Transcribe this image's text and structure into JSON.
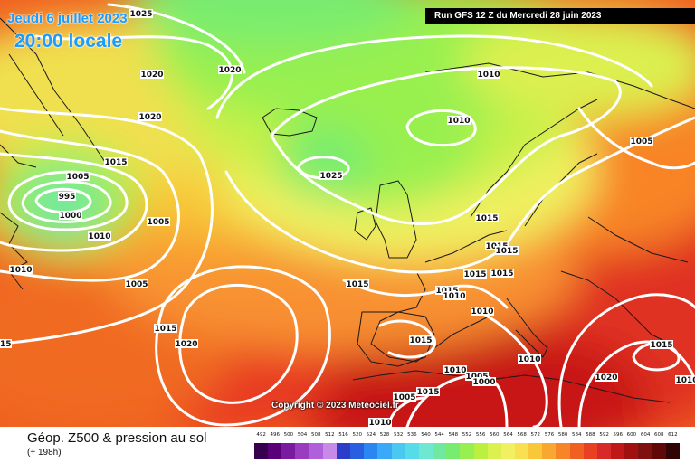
{
  "header": {
    "date": "Jeudi 6 juillet 2023",
    "time": "20:00 locale",
    "run": "Run GFS 12 Z du Mercredi 28 juin 2023"
  },
  "copyright": "Copyright © 2023 Meteociel.fr",
  "footer": {
    "title": "Géop. Z500 & pression au sol",
    "subtitle": "(+ 198h)"
  },
  "legend": {
    "values": [
      "492",
      "496",
      "500",
      "504",
      "508",
      "512",
      "516",
      "520",
      "524",
      "528",
      "532",
      "536",
      "540",
      "544",
      "548",
      "552",
      "556",
      "560",
      "564",
      "568",
      "572",
      "576",
      "580",
      "584",
      "588",
      "592",
      "596",
      "600",
      "604",
      "608",
      "612"
    ],
    "colors": [
      "#3a0050",
      "#5a0078",
      "#7a1a9e",
      "#9a3cc0",
      "#b060d8",
      "#c88ae8",
      "#2a3cc8",
      "#2a5ee0",
      "#2a86f0",
      "#3aaaf8",
      "#4ac8f0",
      "#56dce8",
      "#6ee8d0",
      "#70e8a0",
      "#78ec70",
      "#98f050",
      "#bcf040",
      "#dcf050",
      "#f0f060",
      "#f8e050",
      "#f8c838",
      "#f8a830",
      "#f88428",
      "#f06020",
      "#e84020",
      "#d82828",
      "#c01818",
      "#a01010",
      "#801010",
      "#600808",
      "#300404"
    ]
  },
  "isobar_labels": [
    "1025",
    "1020",
    "1020",
    "1020",
    "1015",
    "1005",
    "995",
    "1000",
    "1010",
    "1005",
    "1010",
    "1005",
    "1015",
    "1015",
    "1020",
    "1025",
    "1010",
    "1010",
    "1005",
    "1015",
    "1015",
    "1015",
    "1015",
    "1015",
    "1015",
    "1015",
    "1010",
    "1010",
    "1015",
    "1010",
    "1010",
    "1005",
    "1000",
    "1015",
    "1005",
    "1010",
    "1015",
    "1020",
    "1010"
  ]
}
